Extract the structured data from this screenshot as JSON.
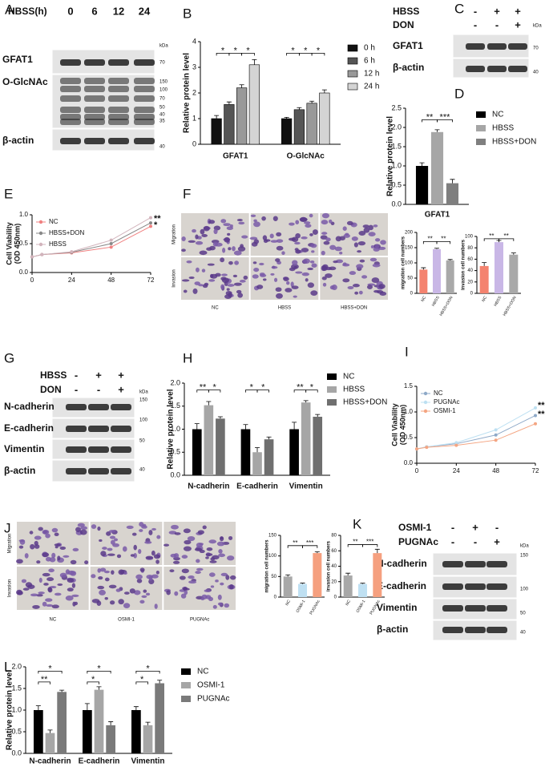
{
  "figure": {
    "letters": [
      "A",
      "B",
      "C",
      "D",
      "E",
      "F",
      "G",
      "H",
      "I",
      "J",
      "K",
      "L"
    ],
    "blots": [
      {
        "conditions": [
          {
            "name": "HBSS(h)",
            "lanes": [
              "0",
              "6",
              "12",
              "24"
            ]
          }
        ],
        "unit": "kDa",
        "rows": [
          {
            "name": "GFAT1",
            "markers": [
              "70"
            ]
          },
          {
            "name": "O-GlcNAc",
            "markers": [
              "150",
              "100",
              "70",
              "50",
              "40",
              "35"
            ]
          },
          {
            "name": "β-actin",
            "markers": [
              "40"
            ]
          }
        ]
      },
      {
        "conditions": [
          {
            "name": "HBSS",
            "lanes": [
              "-",
              "+",
              "+"
            ]
          },
          {
            "name": "DON",
            "lanes": [
              "-",
              "-",
              "+"
            ]
          }
        ],
        "unit": "kDa",
        "rows": [
          {
            "name": "GFAT1",
            "markers": [
              "70"
            ]
          },
          {
            "name": "β-actin",
            "markers": [
              "40"
            ]
          }
        ]
      },
      {
        "conditions": [
          {
            "name": "HBSS",
            "lanes": [
              "-",
              "+",
              "+"
            ]
          },
          {
            "name": "DON",
            "lanes": [
              "-",
              "-",
              "+"
            ]
          }
        ],
        "unit": "kDa",
        "rows": [
          {
            "name": "N-cadherin",
            "markers": [
              "150"
            ]
          },
          {
            "name": "E-cadherin",
            "markers": [
              "100"
            ]
          },
          {
            "name": "Vimentin",
            "markers": [
              "50"
            ]
          },
          {
            "name": "β-actin",
            "markers": [
              "40"
            ]
          }
        ]
      },
      {
        "conditions": [
          {
            "name": "OSMI-1",
            "lanes": [
              "-",
              "+",
              "-"
            ]
          },
          {
            "name": "PUGNAc",
            "lanes": [
              "-",
              "-",
              "+"
            ]
          }
        ],
        "unit": "kDa",
        "rows": [
          {
            "name": "N-cadherin",
            "markers": [
              "150"
            ]
          },
          {
            "name": "E-cadherin",
            "markers": [
              "100"
            ]
          },
          {
            "name": "Vimentin",
            "markers": [
              "50"
            ]
          },
          {
            "name": "β-actin",
            "markers": [
              "40"
            ]
          }
        ]
      }
    ],
    "micrographs": [
      {
        "rows": [
          "Migration",
          "Invasion"
        ],
        "columns": [
          "NC",
          "HBSS",
          "HBSS+DON"
        ]
      },
      {
        "rows": [
          "Migration",
          "Invasion"
        ],
        "columns": [
          "NC",
          "OSMI-1",
          "PUGNAc"
        ]
      }
    ]
  },
  "chart_data": [
    {
      "type": "bar",
      "ylabel": "Relative protein level",
      "categories": [
        "GFAT1",
        "O-GlcNAc"
      ],
      "series": [
        {
          "name": "0 h",
          "color": "#111111",
          "values": [
            1.0,
            1.0
          ],
          "errors": [
            0.12,
            0.05
          ]
        },
        {
          "name": "6 h",
          "color": "#555555",
          "values": [
            1.55,
            1.35
          ],
          "errors": [
            0.1,
            0.08
          ]
        },
        {
          "name": "12 h",
          "color": "#999999",
          "values": [
            2.2,
            1.6
          ],
          "errors": [
            0.12,
            0.08
          ]
        },
        {
          "name": "24 h",
          "color": "#d4d4d4",
          "values": [
            3.1,
            2.0
          ],
          "errors": [
            0.2,
            0.12
          ]
        }
      ],
      "ylim": [
        0,
        4
      ],
      "yticks": [
        0,
        1,
        2,
        3,
        4
      ],
      "annotations": [
        "*",
        "*",
        "*",
        "*",
        "*",
        "*"
      ],
      "legend": "right"
    },
    {
      "type": "bar",
      "ylabel": "Relative protein level",
      "categories": [
        "GFAT1"
      ],
      "series": [
        {
          "name": "NC",
          "color": "#000000",
          "values": [
            1.0
          ],
          "errors": [
            0.08
          ]
        },
        {
          "name": "HBSS",
          "color": "#a6a6a6",
          "values": [
            1.88
          ],
          "errors": [
            0.06
          ]
        },
        {
          "name": "HBSS+DON",
          "color": "#7f7f7f",
          "values": [
            0.55
          ],
          "errors": [
            0.1
          ]
        }
      ],
      "ylim": [
        0,
        2.5
      ],
      "yticks": [
        {
          "value": 0,
          "label": "0.0"
        },
        0.5,
        {
          "value": 1,
          "label": "1.0"
        },
        1.5,
        {
          "value": 2,
          "label": "2.0"
        },
        2.5
      ],
      "annotations": [
        "**",
        "***"
      ],
      "legend": "right"
    },
    {
      "type": "line",
      "ylabel": [
        "Cell Viability",
        "(OD 450nm)"
      ],
      "x": [
        0,
        6,
        24,
        48,
        72
      ],
      "series": [
        {
          "name": "NC",
          "color": "#f08080",
          "values": [
            0.27,
            0.31,
            0.34,
            0.44,
            0.8
          ]
        },
        {
          "name": "HBSS+DON",
          "color": "#888888",
          "values": [
            0.27,
            0.31,
            0.35,
            0.5,
            0.86
          ]
        },
        {
          "name": "HBSS",
          "color": "#d2b4bc",
          "values": [
            0.27,
            0.31,
            0.36,
            0.56,
            0.95
          ]
        }
      ],
      "xlim": [
        0,
        72
      ],
      "xticks": [
        0,
        24,
        48,
        72
      ],
      "ylim": [
        0,
        1
      ],
      "yticks": [
        {
          "value": 0,
          "label": "0.0"
        },
        0.5,
        {
          "value": 1,
          "label": "1.0"
        }
      ],
      "annotations": [
        "**",
        "*"
      ],
      "legend": "upper left"
    },
    {
      "type": "bar",
      "ylabel": "migration cell numbers",
      "categories": [
        "NC",
        "HBSS",
        "HBSS+DON"
      ],
      "values": [
        78,
        145,
        108
      ],
      "errors": [
        6,
        3,
        3
      ],
      "colors": [
        "#f4836f",
        "#c9b7e6",
        "#a9a9a9"
      ],
      "ylim": [
        0,
        200
      ],
      "yticks": [
        0,
        50,
        100,
        150,
        200
      ],
      "annotations": [
        "**",
        "**"
      ]
    },
    {
      "type": "bar",
      "ylabel": "invasion cell numbers",
      "categories": [
        "NC",
        "HBSS",
        "HBSS+DON"
      ],
      "values": [
        48,
        90,
        68
      ],
      "errors": [
        6,
        3,
        3
      ],
      "colors": [
        "#f4836f",
        "#c9b7e6",
        "#a9a9a9"
      ],
      "ylim": [
        0,
        100
      ],
      "yticks": [
        0,
        20,
        40,
        60,
        80,
        100
      ],
      "annotations": [
        "**",
        "**"
      ]
    },
    {
      "type": "bar",
      "ylabel": "Relative protein level",
      "categories": [
        "N-cadherin",
        "E-cadherin",
        "Vimentin"
      ],
      "series": [
        {
          "name": "NC",
          "color": "#000000",
          "values": [
            1.0,
            1.0,
            1.0
          ],
          "errors": [
            0.12,
            0.1,
            0.15
          ]
        },
        {
          "name": "HBSS",
          "color": "#a6a6a6",
          "values": [
            1.52,
            0.5,
            1.58
          ],
          "errors": [
            0.08,
            0.1,
            0.04
          ]
        },
        {
          "name": "HBSS+DON",
          "color": "#6f6f6f",
          "values": [
            1.23,
            0.78,
            1.27
          ],
          "errors": [
            0.04,
            0.05,
            0.05
          ]
        }
      ],
      "ylim": [
        0,
        2
      ],
      "yticks": [
        {
          "value": 0,
          "label": "0.0"
        },
        0.5,
        {
          "value": 1,
          "label": "1.0"
        },
        1.5,
        {
          "value": 2,
          "label": "2.0"
        }
      ],
      "annotations": [
        "**",
        "*",
        "*",
        "*",
        "**",
        "*"
      ],
      "legend": "right"
    },
    {
      "type": "line",
      "ylabel": [
        "Cell Viability",
        "(OD 450nm)"
      ],
      "x": [
        0,
        6,
        24,
        48,
        72
      ],
      "series": [
        {
          "name": "NC",
          "color": "#8ea9c8",
          "values": [
            0.28,
            0.32,
            0.38,
            0.55,
            0.93
          ]
        },
        {
          "name": "PUGNAc",
          "color": "#bde0f2",
          "values": [
            0.28,
            0.32,
            0.4,
            0.65,
            1.08
          ]
        },
        {
          "name": "OSMI-1",
          "color": "#f4a582",
          "values": [
            0.28,
            0.31,
            0.35,
            0.45,
            0.77
          ]
        }
      ],
      "xlim": [
        0,
        72
      ],
      "xticks": [
        0,
        24,
        48,
        72
      ],
      "ylim": [
        0,
        1.5
      ],
      "yticks": [
        {
          "value": 0,
          "label": "0.0"
        },
        0.5,
        {
          "value": 1,
          "label": "1.0"
        },
        1.5
      ],
      "annotations": [
        "**",
        "**"
      ],
      "legend": "upper left"
    },
    {
      "type": "bar",
      "ylabel": "migration cell numbers",
      "categories": [
        "NC",
        "OSMI-1",
        "PUGNAc"
      ],
      "values": [
        50,
        32,
        107
      ],
      "errors": [
        4,
        2,
        3
      ],
      "colors": [
        "#a8a8a8",
        "#bfe0f2",
        "#f5a07f"
      ],
      "ylim": [
        0,
        150
      ],
      "yticks": [
        0,
        50,
        100,
        150
      ],
      "annotations": [
        "**",
        "***"
      ]
    },
    {
      "type": "bar",
      "ylabel": "invasion cell numbers",
      "categories": [
        "NC",
        "OSMI-1",
        "PUGNAc"
      ],
      "values": [
        28,
        17,
        57
      ],
      "errors": [
        3,
        1,
        5
      ],
      "colors": [
        "#a8a8a8",
        "#bfe0f2",
        "#f5a07f"
      ],
      "ylim": [
        0,
        80
      ],
      "yticks": [
        0,
        20,
        40,
        60,
        80
      ],
      "annotations": [
        "**",
        "***"
      ]
    },
    {
      "type": "bar",
      "ylabel": "Relative protein level",
      "categories": [
        "N-cadherin",
        "E-cadherin",
        "Vimentin"
      ],
      "series": [
        {
          "name": "NC",
          "color": "#000000",
          "values": [
            1.0,
            1.0,
            1.0
          ],
          "errors": [
            0.1,
            0.15,
            0.08
          ]
        },
        {
          "name": "OSMI-1",
          "color": "#a6a6a6",
          "values": [
            0.47,
            1.47,
            0.65
          ],
          "errors": [
            0.07,
            0.07,
            0.07
          ]
        },
        {
          "name": "PUGNAc",
          "color": "#7a7a7a",
          "values": [
            1.42,
            0.65,
            1.62
          ],
          "errors": [
            0.04,
            0.08,
            0.07
          ]
        }
      ],
      "ylim": [
        0,
        2
      ],
      "yticks": [
        {
          "value": 0,
          "label": "0.0"
        },
        0.5,
        {
          "value": 1,
          "label": "1.0"
        },
        1.5,
        {
          "value": 2,
          "label": "2.0"
        }
      ],
      "annotations": [
        "*",
        "**",
        "*",
        "*",
        "*",
        "*"
      ],
      "legend": "right"
    }
  ]
}
